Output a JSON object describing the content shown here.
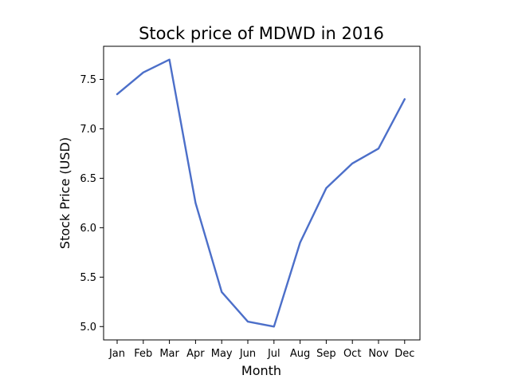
{
  "chart_data": {
    "type": "line",
    "title": "Stock price of MDWD in 2016",
    "xlabel": "Month",
    "ylabel": "Stock Price (USD)",
    "categories": [
      "Jan",
      "Feb",
      "Mar",
      "Apr",
      "May",
      "Jun",
      "Jul",
      "Aug",
      "Sep",
      "Oct",
      "Nov",
      "Dec"
    ],
    "series": [
      {
        "values": [
          7.35,
          7.57,
          7.7,
          6.25,
          5.35,
          5.05,
          5.0,
          5.85,
          6.4,
          6.65,
          6.8,
          7.3
        ],
        "color": "#4c6fc9"
      }
    ],
    "yticks": [
      5.0,
      5.5,
      6.0,
      6.5,
      7.0,
      7.5
    ],
    "ytick_labels": [
      "5.0",
      "5.5",
      "6.0",
      "6.5",
      "7.0",
      "7.5"
    ],
    "ylim": [
      4.865,
      7.835
    ],
    "grid": false,
    "legend": false
  }
}
